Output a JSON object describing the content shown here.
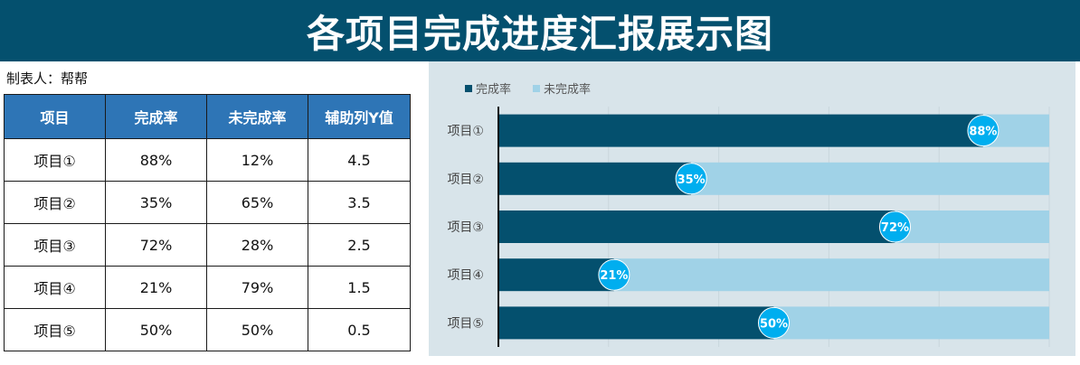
{
  "header": {
    "title": "各项目完成进度汇报展示图"
  },
  "maker": "制表人：帮帮",
  "table": {
    "columns": [
      "项目",
      "完成率",
      "未完成率",
      "辅助列Y值"
    ],
    "rows": [
      [
        "项目①",
        "88%",
        "12%",
        "4.5"
      ],
      [
        "项目②",
        "35%",
        "65%",
        "3.5"
      ],
      [
        "项目③",
        "72%",
        "28%",
        "2.5"
      ],
      [
        "项目④",
        "21%",
        "79%",
        "1.5"
      ],
      [
        "项目⑤",
        "50%",
        "50%",
        "0.5"
      ]
    ]
  },
  "chart_data": {
    "type": "bar",
    "orientation": "horizontal",
    "stacked": true,
    "categories": [
      "项目①",
      "项目②",
      "项目③",
      "项目④",
      "项目⑤"
    ],
    "series": [
      {
        "name": "完成率",
        "values": [
          88,
          35,
          72,
          21,
          50
        ]
      },
      {
        "name": "未完成率",
        "values": [
          12,
          65,
          28,
          79,
          50
        ]
      }
    ],
    "data_labels": [
      "88%",
      "35%",
      "72%",
      "21%",
      "50%"
    ],
    "xlim": [
      0,
      100
    ],
    "legend": "top-left",
    "grid": true,
    "colors": {
      "complete": "#04506e",
      "incomplete": "#a0d2e7",
      "marker": "#00aeef",
      "panel": "#d8e4ea"
    }
  }
}
